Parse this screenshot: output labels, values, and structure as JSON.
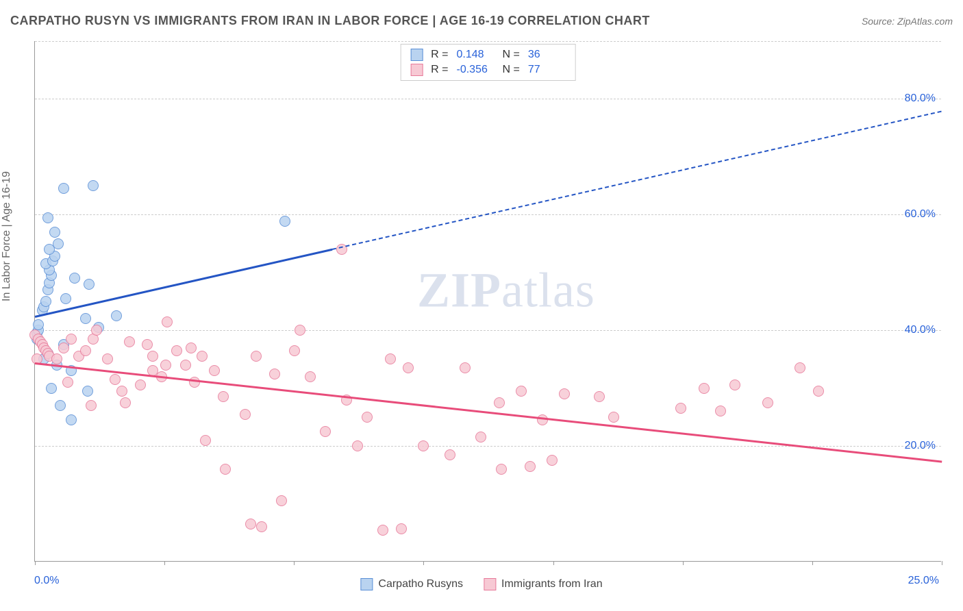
{
  "title": "CARPATHO RUSYN VS IMMIGRANTS FROM IRAN IN LABOR FORCE | AGE 16-19 CORRELATION CHART",
  "source_label": "Source: ZipAtlas.com",
  "y_axis_label": "In Labor Force | Age 16-19",
  "watermark_a": "ZIP",
  "watermark_b": "atlas",
  "chart": {
    "type": "scatter",
    "xlim": [
      0,
      25
    ],
    "ylim": [
      0,
      90
    ],
    "y_ticks": [
      20,
      40,
      60,
      80
    ],
    "y_tick_labels": [
      "20.0%",
      "40.0%",
      "60.0%",
      "80.0%"
    ],
    "x_tick_positions": [
      0,
      3.57,
      7.14,
      10.71,
      14.29,
      17.86,
      21.43,
      25
    ],
    "x_left_label": "0.0%",
    "x_right_label": "25.0%",
    "grid_color": "#cccccc",
    "axis_color": "#999999",
    "background_color": "#ffffff",
    "marker_radius": 8,
    "series": [
      {
        "name": "Carpatho Rusyns",
        "fill": "#b9d3f0",
        "stroke": "#5a8fd6",
        "line_color": "#2455c4",
        "R": "0.148",
        "N": "36",
        "trend": {
          "x1": 0,
          "y1": 42.5,
          "x2": 25,
          "y2": 78,
          "solid_until_x": 8.2
        },
        "points": [
          [
            0.05,
            38.5
          ],
          [
            0.05,
            39.5
          ],
          [
            0.1,
            40
          ],
          [
            0.1,
            41
          ],
          [
            0.2,
            43.5
          ],
          [
            0.25,
            44
          ],
          [
            0.3,
            45
          ],
          [
            0.35,
            47
          ],
          [
            0.4,
            48.2
          ],
          [
            0.45,
            49.5
          ],
          [
            0.4,
            50.5
          ],
          [
            0.3,
            51.5
          ],
          [
            0.5,
            52
          ],
          [
            0.55,
            52.8
          ],
          [
            0.4,
            54
          ],
          [
            0.65,
            55
          ],
          [
            0.55,
            57
          ],
          [
            0.35,
            59.5
          ],
          [
            0.8,
            64.5
          ],
          [
            1.6,
            65
          ],
          [
            0.25,
            35
          ],
          [
            0.35,
            36
          ],
          [
            0.8,
            37.5
          ],
          [
            0.6,
            34
          ],
          [
            1.0,
            33
          ],
          [
            0.45,
            30
          ],
          [
            1.45,
            29.5
          ],
          [
            0.7,
            27
          ],
          [
            1.0,
            24.5
          ],
          [
            1.4,
            42
          ],
          [
            1.75,
            40.5
          ],
          [
            2.25,
            42.5
          ],
          [
            0.85,
            45.5
          ],
          [
            1.1,
            49
          ],
          [
            1.5,
            48
          ],
          [
            6.9,
            58.8
          ]
        ]
      },
      {
        "name": "Immigrants from Iran",
        "fill": "#f7c9d4",
        "stroke": "#e77a9a",
        "line_color": "#e84c7a",
        "R": "-0.356",
        "N": "77",
        "trend": {
          "x1": 0,
          "y1": 34.5,
          "x2": 25,
          "y2": 17.5,
          "solid_until_x": 25
        },
        "points": [
          [
            0.0,
            39.2
          ],
          [
            0.1,
            38.5
          ],
          [
            0.15,
            38
          ],
          [
            0.2,
            37.5
          ],
          [
            0.25,
            37
          ],
          [
            0.3,
            36.5
          ],
          [
            0.35,
            36
          ],
          [
            0.05,
            35
          ],
          [
            0.4,
            35.5
          ],
          [
            0.6,
            35
          ],
          [
            0.8,
            37
          ],
          [
            1.0,
            38.5
          ],
          [
            1.2,
            35.5
          ],
          [
            1.4,
            36.5
          ],
          [
            1.6,
            38.5
          ],
          [
            1.7,
            40
          ],
          [
            2.0,
            35
          ],
          [
            2.2,
            31.5
          ],
          [
            2.4,
            29.5
          ],
          [
            2.5,
            27.5
          ],
          [
            2.6,
            38
          ],
          [
            2.9,
            30.5
          ],
          [
            3.1,
            37.5
          ],
          [
            3.25,
            33
          ],
          [
            3.25,
            35.5
          ],
          [
            3.5,
            32
          ],
          [
            3.6,
            34
          ],
          [
            3.65,
            41.5
          ],
          [
            3.9,
            36.5
          ],
          [
            4.15,
            34
          ],
          [
            4.3,
            37
          ],
          [
            4.4,
            31
          ],
          [
            4.6,
            35.5
          ],
          [
            4.7,
            21
          ],
          [
            4.95,
            33
          ],
          [
            5.2,
            28.5
          ],
          [
            5.25,
            16
          ],
          [
            5.8,
            25.5
          ],
          [
            5.95,
            6.5
          ],
          [
            6.1,
            35.5
          ],
          [
            6.25,
            6
          ],
          [
            6.6,
            32.5
          ],
          [
            6.8,
            10.5
          ],
          [
            7.15,
            36.5
          ],
          [
            7.3,
            40
          ],
          [
            7.6,
            32
          ],
          [
            8.0,
            22.5
          ],
          [
            8.45,
            54
          ],
          [
            8.6,
            28
          ],
          [
            8.9,
            20
          ],
          [
            9.15,
            25
          ],
          [
            9.6,
            5.5
          ],
          [
            9.8,
            35
          ],
          [
            10.1,
            5.7
          ],
          [
            10.3,
            33.5
          ],
          [
            10.7,
            20
          ],
          [
            11.45,
            18.5
          ],
          [
            11.85,
            33.5
          ],
          [
            12.3,
            21.5
          ],
          [
            12.8,
            27.5
          ],
          [
            12.85,
            16
          ],
          [
            13.4,
            29.5
          ],
          [
            13.65,
            16.5
          ],
          [
            14.0,
            24.5
          ],
          [
            14.25,
            17.5
          ],
          [
            14.6,
            29
          ],
          [
            15.55,
            28.5
          ],
          [
            15.95,
            25
          ],
          [
            17.8,
            26.5
          ],
          [
            18.45,
            30
          ],
          [
            18.9,
            26
          ],
          [
            19.3,
            30.5
          ],
          [
            20.2,
            27.5
          ],
          [
            21.1,
            33.5
          ],
          [
            21.6,
            29.5
          ],
          [
            0.9,
            31
          ],
          [
            1.55,
            27
          ]
        ]
      }
    ]
  },
  "legend_bottom": [
    {
      "label": "Carpatho Rusyns",
      "fill": "#b9d3f0",
      "stroke": "#5a8fd6"
    },
    {
      "label": "Immigrants from Iran",
      "fill": "#f7c9d4",
      "stroke": "#e77a9a"
    }
  ],
  "legend_top_labels": {
    "R": "R  =",
    "N": "N  ="
  }
}
